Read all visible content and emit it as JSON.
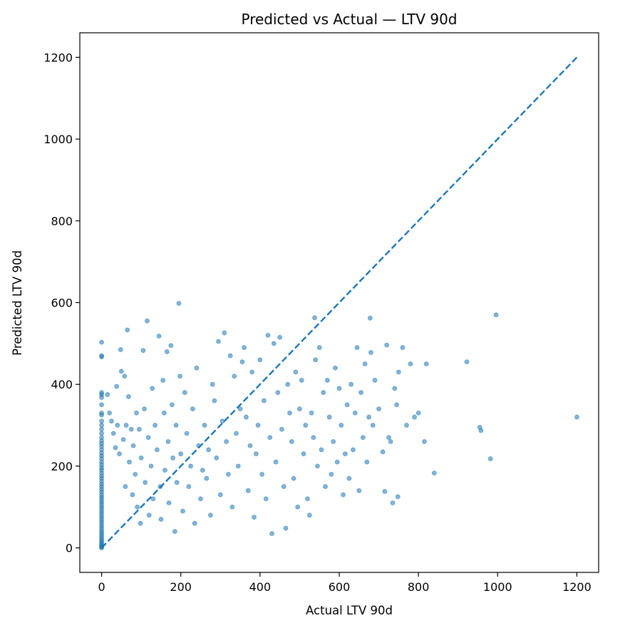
{
  "chart_data": {
    "type": "scatter",
    "title": "Predicted vs Actual — LTV 90d",
    "xlabel": "Actual LTV 90d",
    "ylabel": "Predicted LTV 90d",
    "xlim": [
      -55,
      1255
    ],
    "ylim": [
      -60,
      1260
    ],
    "xticks": [
      0,
      200,
      400,
      600,
      800,
      1000,
      1200
    ],
    "yticks": [
      0,
      200,
      400,
      600,
      800,
      1000,
      1200
    ],
    "xtick_labels": [
      "0",
      "200",
      "400",
      "600",
      "800",
      "1000",
      "1200"
    ],
    "ytick_labels": [
      "0",
      "200",
      "400",
      "600",
      "800",
      "1000",
      "1200"
    ],
    "grid": false,
    "colors": {
      "points": "#1f77b4",
      "reference_line": "#1f77b4"
    },
    "reference_line": {
      "x": [
        0,
        1200
      ],
      "y": [
        0,
        1200
      ],
      "style": "dashed"
    },
    "zero_actual_predictions": [
      503,
      467,
      470,
      380,
      375,
      368,
      350,
      330,
      325,
      310,
      300,
      290,
      280,
      270,
      262,
      255,
      248,
      240,
      232,
      225,
      218,
      210,
      203,
      196,
      190,
      183,
      176,
      170,
      163,
      156,
      150,
      143,
      137,
      130,
      124,
      118,
      112,
      106,
      100,
      94,
      88,
      82,
      76,
      70,
      64,
      58,
      52,
      46,
      40,
      35,
      30,
      25,
      20,
      16,
      12,
      8,
      5,
      2,
      0
    ],
    "points": [
      [
        15,
        375
      ],
      [
        20,
        330
      ],
      [
        25,
        310
      ],
      [
        30,
        280
      ],
      [
        35,
        245
      ],
      [
        38,
        395
      ],
      [
        40,
        300
      ],
      [
        45,
        230
      ],
      [
        48,
        485
      ],
      [
        50,
        432
      ],
      [
        55,
        265
      ],
      [
        58,
        420
      ],
      [
        60,
        150
      ],
      [
        62,
        300
      ],
      [
        65,
        533
      ],
      [
        68,
        370
      ],
      [
        70,
        210
      ],
      [
        75,
        290
      ],
      [
        78,
        130
      ],
      [
        80,
        250
      ],
      [
        85,
        180
      ],
      [
        88,
        330
      ],
      [
        90,
        100
      ],
      [
        95,
        290
      ],
      [
        98,
        60
      ],
      [
        100,
        220
      ],
      [
        105,
        483
      ],
      [
        108,
        340
      ],
      [
        110,
        160
      ],
      [
        115,
        555
      ],
      [
        118,
        270
      ],
      [
        120,
        80
      ],
      [
        125,
        200
      ],
      [
        128,
        390
      ],
      [
        130,
        120
      ],
      [
        135,
        300
      ],
      [
        140,
        240
      ],
      [
        145,
        518
      ],
      [
        148,
        150
      ],
      [
        150,
        70
      ],
      [
        155,
        410
      ],
      [
        158,
        330
      ],
      [
        160,
        190
      ],
      [
        165,
        480
      ],
      [
        168,
        260
      ],
      [
        170,
        110
      ],
      [
        175,
        495
      ],
      [
        178,
        350
      ],
      [
        180,
        220
      ],
      [
        185,
        40
      ],
      [
        188,
        300
      ],
      [
        190,
        160
      ],
      [
        195,
        598
      ],
      [
        198,
        420
      ],
      [
        200,
        230
      ],
      [
        205,
        90
      ],
      [
        210,
        380
      ],
      [
        215,
        280
      ],
      [
        220,
        150
      ],
      [
        225,
        200
      ],
      [
        230,
        340
      ],
      [
        235,
        60
      ],
      [
        240,
        440
      ],
      [
        245,
        250
      ],
      [
        250,
        120
      ],
      [
        255,
        190
      ],
      [
        260,
        300
      ],
      [
        265,
        170
      ],
      [
        270,
        240
      ],
      [
        275,
        80
      ],
      [
        280,
        400
      ],
      [
        285,
        360
      ],
      [
        290,
        220
      ],
      [
        295,
        505
      ],
      [
        300,
        130
      ],
      [
        305,
        310
      ],
      [
        310,
        526
      ],
      [
        315,
        260
      ],
      [
        320,
        180
      ],
      [
        325,
        470
      ],
      [
        330,
        100
      ],
      [
        335,
        420
      ],
      [
        340,
        280
      ],
      [
        345,
        200
      ],
      [
        350,
        340
      ],
      [
        355,
        455
      ],
      [
        360,
        490
      ],
      [
        365,
        320
      ],
      [
        370,
        140
      ],
      [
        375,
        250
      ],
      [
        380,
        430
      ],
      [
        385,
        75
      ],
      [
        390,
        230
      ],
      [
        395,
        300
      ],
      [
        400,
        460
      ],
      [
        405,
        180
      ],
      [
        410,
        360
      ],
      [
        415,
        120
      ],
      [
        420,
        520
      ],
      [
        425,
        270
      ],
      [
        430,
        35
      ],
      [
        435,
        500
      ],
      [
        440,
        210
      ],
      [
        445,
        380
      ],
      [
        450,
        515
      ],
      [
        455,
        290
      ],
      [
        460,
        150
      ],
      [
        465,
        48
      ],
      [
        470,
        400
      ],
      [
        475,
        330
      ],
      [
        480,
        260
      ],
      [
        485,
        170
      ],
      [
        490,
        430
      ],
      [
        495,
        100
      ],
      [
        500,
        340
      ],
      [
        505,
        410
      ],
      [
        510,
        230
      ],
      [
        515,
        300
      ],
      [
        520,
        120
      ],
      [
        525,
        80
      ],
      [
        530,
        330
      ],
      [
        535,
        270
      ],
      [
        538,
        563
      ],
      [
        540,
        460
      ],
      [
        545,
        200
      ],
      [
        550,
        490
      ],
      [
        555,
        240
      ],
      [
        560,
        380
      ],
      [
        565,
        150
      ],
      [
        570,
        410
      ],
      [
        575,
        320
      ],
      [
        580,
        180
      ],
      [
        585,
        260
      ],
      [
        590,
        440
      ],
      [
        595,
        210
      ],
      [
        600,
        390
      ],
      [
        605,
        300
      ],
      [
        610,
        130
      ],
      [
        615,
        230
      ],
      [
        620,
        350
      ],
      [
        625,
        170
      ],
      [
        630,
        400
      ],
      [
        635,
        240
      ],
      [
        640,
        330
      ],
      [
        645,
        490
      ],
      [
        650,
        140
      ],
      [
        655,
        380
      ],
      [
        660,
        270
      ],
      [
        665,
        450
      ],
      [
        670,
        210
      ],
      [
        675,
        320
      ],
      [
        678,
        562
      ],
      [
        680,
        478
      ],
      [
        685,
        300
      ],
      [
        690,
        410
      ],
      [
        700,
        340
      ],
      [
        710,
        235
      ],
      [
        715,
        138
      ],
      [
        720,
        496
      ],
      [
        725,
        270
      ],
      [
        730,
        260
      ],
      [
        735,
        110
      ],
      [
        740,
        390
      ],
      [
        745,
        350
      ],
      [
        748,
        125
      ],
      [
        750,
        430
      ],
      [
        760,
        490
      ],
      [
        770,
        300
      ],
      [
        780,
        450
      ],
      [
        790,
        320
      ],
      [
        800,
        330
      ],
      [
        815,
        260
      ],
      [
        820,
        450
      ],
      [
        840,
        183
      ],
      [
        922,
        455
      ],
      [
        955,
        295
      ],
      [
        958,
        287
      ],
      [
        982,
        218
      ],
      [
        996,
        570
      ],
      [
        1200,
        320
      ]
    ]
  }
}
